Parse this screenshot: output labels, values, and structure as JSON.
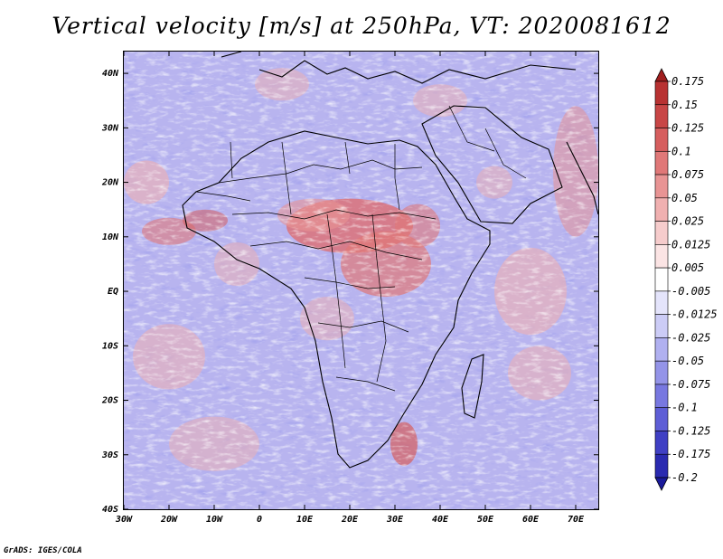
{
  "title": "Vertical velocity [m/s] at 250hPa, VT: 2020081612",
  "credit": "GrADS: IGES/COLA",
  "chart_data": {
    "type": "heatmap",
    "title": "Vertical velocity [m/s] at 250hPa, VT: 2020081612",
    "variable": "Vertical velocity",
    "units": "m/s",
    "level": "250hPa",
    "valid_time": "2020081612",
    "x_ticks": [
      "30W",
      "20W",
      "10W",
      "0",
      "10E",
      "20E",
      "30E",
      "40E",
      "50E",
      "60E",
      "70E"
    ],
    "x_values": [
      -30,
      -20,
      -10,
      0,
      10,
      20,
      30,
      40,
      50,
      60,
      70
    ],
    "y_ticks": [
      "40N",
      "30N",
      "20N",
      "10N",
      "EQ",
      "10S",
      "20S",
      "30S",
      "40S"
    ],
    "y_values": [
      40,
      30,
      20,
      10,
      0,
      -10,
      -20,
      -30,
      -40
    ],
    "xlim": [
      -30,
      75
    ],
    "ylim": [
      -40,
      44
    ],
    "colorbar": {
      "labels": [
        "0.175",
        "0.15",
        "0.125",
        "0.1",
        "0.075",
        "0.05",
        "0.025",
        "0.0125",
        "0.005",
        "-0.005",
        "-0.0125",
        "-0.025",
        "-0.05",
        "-0.075",
        "-0.1",
        "-0.125",
        "-0.175",
        "-0.2"
      ],
      "colors": [
        "#a01e1e",
        "#b83232",
        "#c84646",
        "#d65e5e",
        "#e07878",
        "#e89494",
        "#f0b0b0",
        "#f6cccc",
        "#fbe4e4",
        "#ffffff",
        "#e4e4fb",
        "#ccccf6",
        "#b0b0f0",
        "#9494e8",
        "#7878e0",
        "#5e5ed6",
        "#4040c4",
        "#2a2ab0",
        "#1a1a9a"
      ]
    },
    "dominant_background": "light blue/lavender (weak negative values)",
    "notable_features": [
      "positive (red) band over Sahel / central Africa",
      "positive streaks over Gulf of Guinea and SE Africa"
    ]
  }
}
